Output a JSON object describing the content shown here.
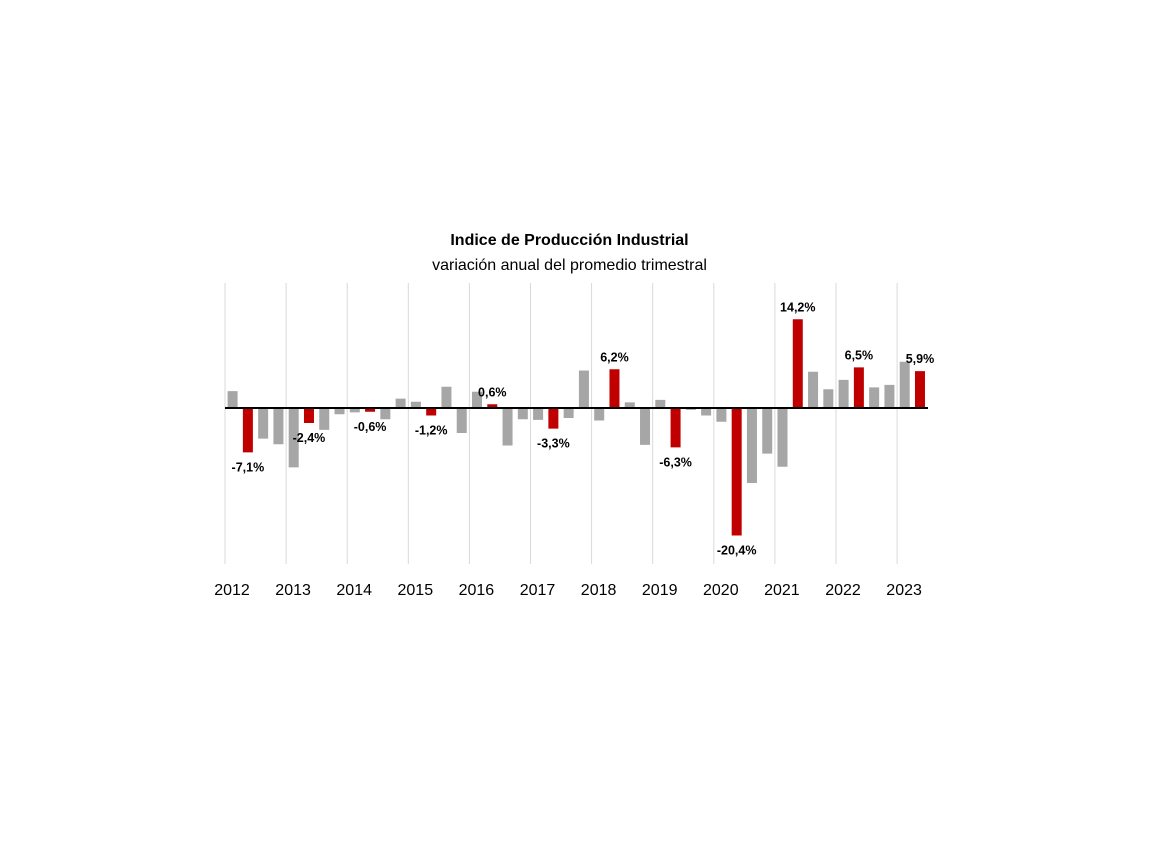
{
  "chart_data": {
    "type": "bar",
    "title": "Indice de Producción Industrial",
    "subtitle": "variación anual del promedio trimestral",
    "xlabel": "",
    "ylabel": "",
    "ylim": [
      -25,
      20
    ],
    "grid": "vertical",
    "year_labels": [
      "2012",
      "2013",
      "2014",
      "2015",
      "2016",
      "2017",
      "2018",
      "2019",
      "2020",
      "2021",
      "2022",
      "2023"
    ],
    "colors": {
      "highlight": "#c00000",
      "normal": "#a6a6a6",
      "axis": "#000000",
      "grid": "#d9d9d9"
    },
    "series": [
      {
        "name": "variación anual",
        "values": [
          2.7,
          -7.1,
          -4.9,
          -5.8,
          -9.5,
          -2.4,
          -3.5,
          -1.0,
          -0.7,
          -0.6,
          -1.8,
          1.5,
          1.0,
          -1.2,
          3.4,
          -4.0,
          2.6,
          0.6,
          -6.0,
          -1.8,
          -1.9,
          -3.3,
          -1.6,
          6.0,
          -2.0,
          6.2,
          0.9,
          -5.9,
          1.3,
          -6.3,
          -0.3,
          -1.2,
          -2.2,
          -20.4,
          -12.0,
          -7.3,
          -9.4,
          14.2,
          5.8,
          3.0,
          4.5,
          6.5,
          3.3,
          3.7,
          7.4,
          5.9
        ],
        "highlight_indices": [
          1,
          5,
          9,
          13,
          17,
          21,
          25,
          29,
          33,
          37,
          41,
          45
        ]
      }
    ],
    "data_labels": [
      {
        "index": 1,
        "text": "-7,1%"
      },
      {
        "index": 5,
        "text": "-2,4%"
      },
      {
        "index": 9,
        "text": "-0,6%"
      },
      {
        "index": 13,
        "text": "-1,2%"
      },
      {
        "index": 17,
        "text": "0,6%"
      },
      {
        "index": 21,
        "text": "-3,3%"
      },
      {
        "index": 25,
        "text": "6,2%"
      },
      {
        "index": 29,
        "text": "-6,3%"
      },
      {
        "index": 33,
        "text": "-20,4%"
      },
      {
        "index": 37,
        "text": "14,2%"
      },
      {
        "index": 41,
        "text": "6,5%"
      },
      {
        "index": 45,
        "text": "5,9%"
      }
    ]
  }
}
